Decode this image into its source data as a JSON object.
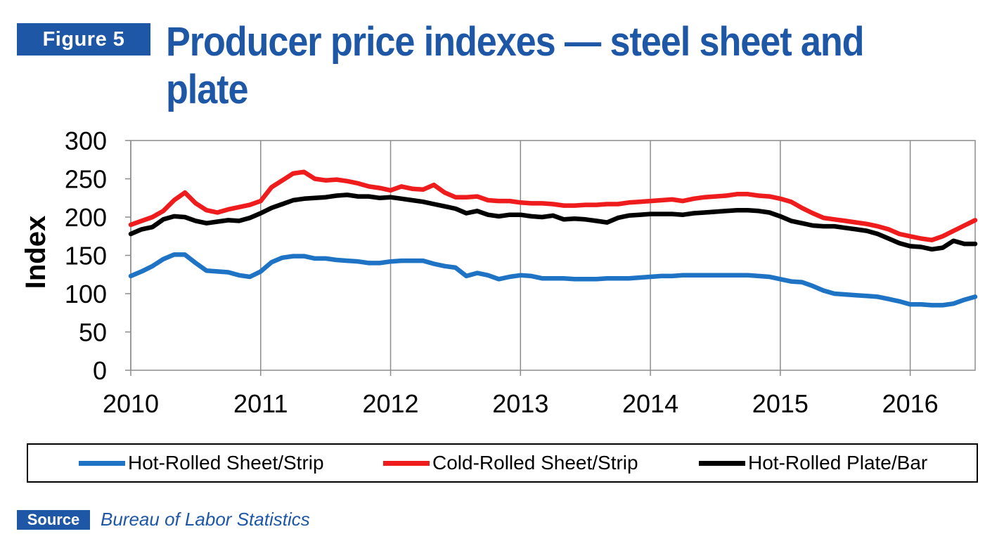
{
  "figure": {
    "badge": "Figure 5",
    "title": "Producer price indexes — steel sheet and plate"
  },
  "source": {
    "badge": "Source",
    "text": "Bureau of Labor Statistics"
  },
  "chart_data": {
    "type": "line",
    "title": "Producer price indexes — steel sheet and plate",
    "xlabel": "",
    "ylabel": "Index",
    "ylim": [
      0,
      300
    ],
    "xlim": [
      "2010-01",
      "2016-07"
    ],
    "y_ticks": [
      0,
      50,
      100,
      150,
      200,
      250,
      300
    ],
    "x_ticks": [
      "2010",
      "2011",
      "2012",
      "2013",
      "2014",
      "2015",
      "2016"
    ],
    "grid": "vertical lines at each year",
    "legend_position": "bottom",
    "x": [
      "2010-01",
      "2010-02",
      "2010-03",
      "2010-04",
      "2010-05",
      "2010-06",
      "2010-07",
      "2010-08",
      "2010-09",
      "2010-10",
      "2010-11",
      "2010-12",
      "2011-01",
      "2011-02",
      "2011-03",
      "2011-04",
      "2011-05",
      "2011-06",
      "2011-07",
      "2011-08",
      "2011-09",
      "2011-10",
      "2011-11",
      "2011-12",
      "2012-01",
      "2012-02",
      "2012-03",
      "2012-04",
      "2012-05",
      "2012-06",
      "2012-07",
      "2012-08",
      "2012-09",
      "2012-10",
      "2012-11",
      "2012-12",
      "2013-01",
      "2013-02",
      "2013-03",
      "2013-04",
      "2013-05",
      "2013-06",
      "2013-07",
      "2013-08",
      "2013-09",
      "2013-10",
      "2013-11",
      "2013-12",
      "2014-01",
      "2014-02",
      "2014-03",
      "2014-04",
      "2014-05",
      "2014-06",
      "2014-07",
      "2014-08",
      "2014-09",
      "2014-10",
      "2014-11",
      "2014-12",
      "2015-01",
      "2015-02",
      "2015-03",
      "2015-04",
      "2015-05",
      "2015-06",
      "2015-07",
      "2015-08",
      "2015-09",
      "2015-10",
      "2015-11",
      "2015-12",
      "2016-01",
      "2016-02",
      "2016-03",
      "2016-04",
      "2016-05",
      "2016-06",
      "2016-07"
    ],
    "series": [
      {
        "name": "Hot-Rolled Sheet/Strip",
        "color": "#1f73c4",
        "values": [
          123,
          129,
          136,
          145,
          151,
          151,
          140,
          130,
          129,
          128,
          124,
          122,
          129,
          141,
          147,
          149,
          149,
          146,
          146,
          144,
          143,
          142,
          140,
          140,
          142,
          143,
          143,
          143,
          139,
          136,
          134,
          123,
          127,
          124,
          119,
          122,
          124,
          123,
          120,
          120,
          120,
          119,
          119,
          119,
          120,
          120,
          120,
          121,
          122,
          123,
          123,
          124,
          124,
          124,
          124,
          124,
          124,
          124,
          123,
          122,
          119,
          116,
          115,
          110,
          104,
          100,
          99,
          98,
          97,
          96,
          93,
          90,
          86,
          86,
          85,
          85,
          87,
          92,
          96
        ]
      },
      {
        "name": "Cold-Rolled Sheet/Strip",
        "color": "#ee1c1c",
        "values": [
          190,
          195,
          200,
          208,
          222,
          232,
          218,
          209,
          206,
          210,
          213,
          216,
          221,
          239,
          248,
          257,
          259,
          250,
          248,
          249,
          247,
          244,
          240,
          238,
          235,
          240,
          237,
          236,
          242,
          232,
          226,
          226,
          227,
          222,
          221,
          221,
          219,
          218,
          218,
          217,
          215,
          215,
          216,
          216,
          217,
          217,
          219,
          220,
          221,
          222,
          223,
          221,
          224,
          226,
          227,
          228,
          230,
          230,
          228,
          227,
          224,
          220,
          212,
          205,
          199,
          197,
          195,
          193,
          191,
          188,
          184,
          178,
          175,
          172,
          170,
          175,
          182,
          189,
          196
        ]
      },
      {
        "name": "Hot-Rolled Plate/Bar",
        "color": "#000000",
        "values": [
          178,
          184,
          187,
          197,
          201,
          200,
          195,
          192,
          194,
          196,
          195,
          199,
          205,
          212,
          217,
          222,
          224,
          225,
          226,
          228,
          229,
          227,
          227,
          225,
          226,
          224,
          222,
          220,
          217,
          214,
          211,
          205,
          208,
          203,
          201,
          203,
          203,
          201,
          200,
          202,
          197,
          198,
          197,
          195,
          193,
          199,
          202,
          203,
          204,
          204,
          204,
          203,
          205,
          206,
          207,
          208,
          209,
          209,
          208,
          206,
          201,
          195,
          192,
          189,
          188,
          188,
          186,
          184,
          182,
          178,
          172,
          166,
          162,
          161,
          158,
          160,
          169,
          165,
          165
        ]
      }
    ]
  }
}
